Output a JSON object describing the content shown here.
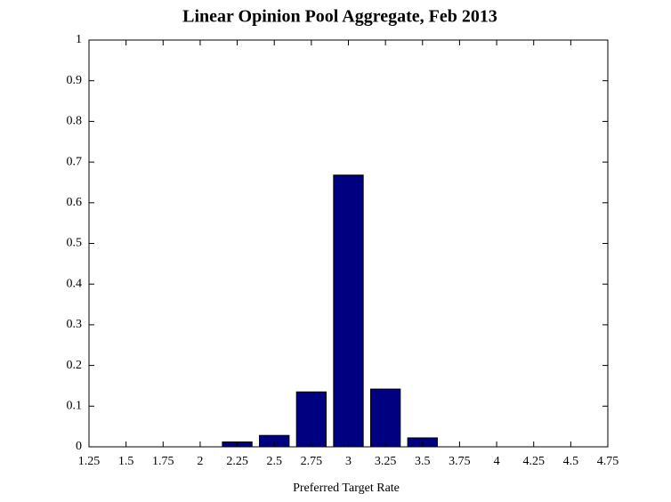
{
  "chart_data": {
    "type": "bar",
    "title": "Linear Opinion Pool Aggregate, Feb 2013",
    "x_label": "Preferred Target Rate",
    "x": [
      1.25,
      1.5,
      1.75,
      2,
      2.25,
      2.5,
      2.75,
      3,
      3.25,
      3.5,
      3.75,
      4,
      4.25,
      4.5,
      4.75
    ],
    "values": [
      0,
      0,
      0,
      0,
      0.012,
      0.028,
      0.135,
      0.668,
      0.142,
      0.022,
      0,
      0,
      0,
      0,
      0
    ],
    "color": "#000080",
    "xlim": [
      1.25,
      4.75
    ],
    "xticks": [
      1.25,
      1.5,
      1.75,
      2,
      2.25,
      2.5,
      2.75,
      3,
      3.25,
      3.5,
      3.75,
      4,
      4.25,
      4.5,
      4.75
    ],
    "ylim": [
      0,
      1
    ],
    "yticks": [
      0,
      0.1,
      0.2,
      0.3,
      0.4,
      0.5,
      0.6,
      0.7,
      0.8,
      0.9,
      1
    ],
    "grid": false
  }
}
